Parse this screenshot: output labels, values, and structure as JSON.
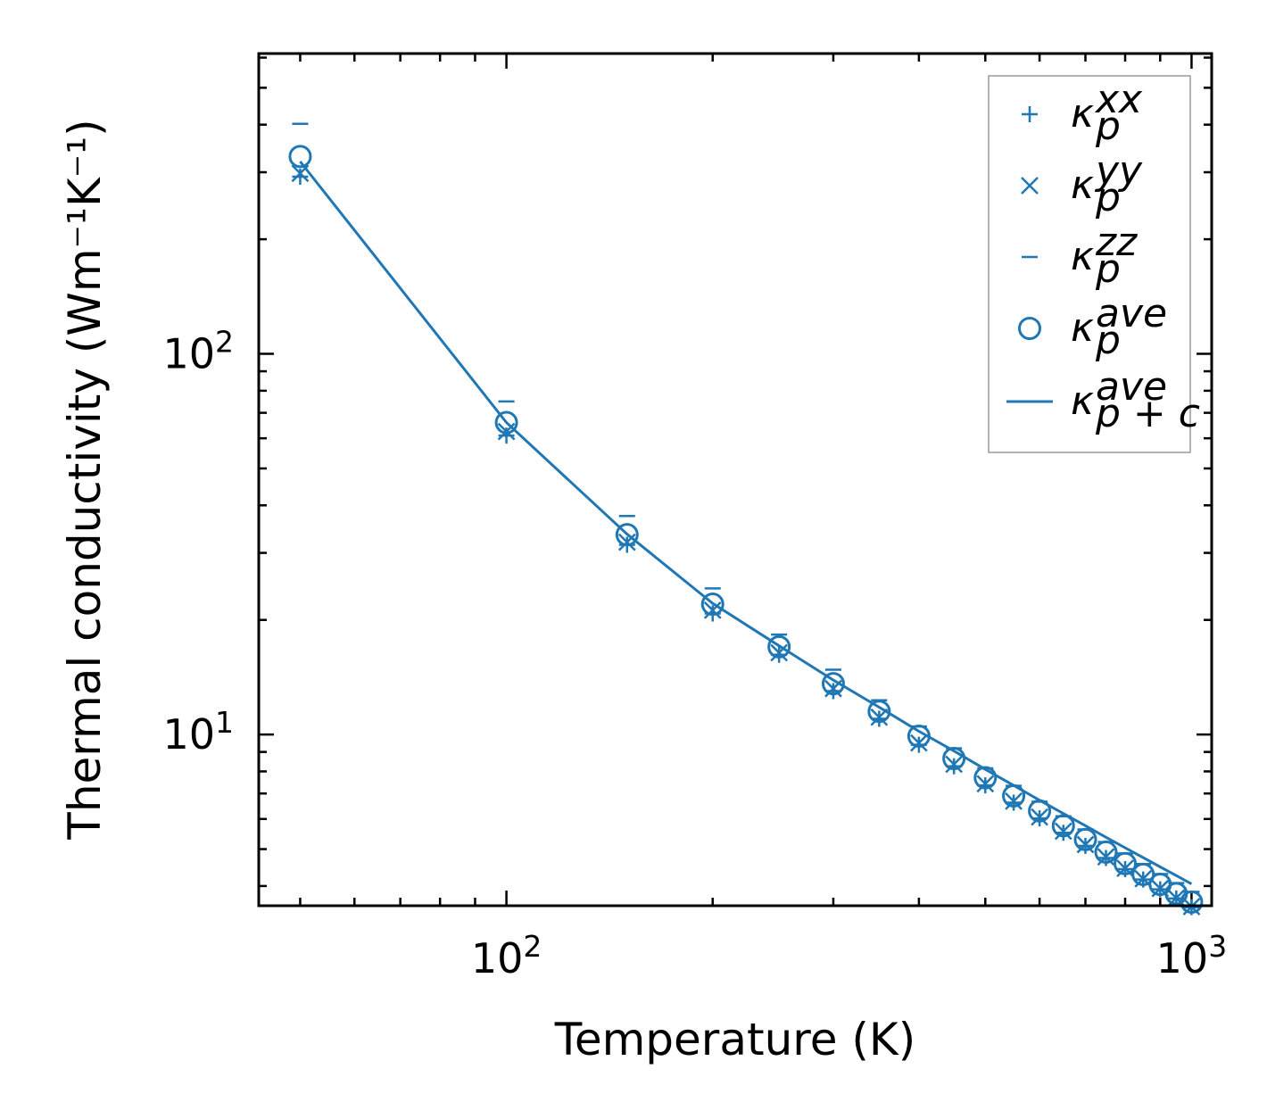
{
  "chart_data": {
    "type": "scatter",
    "xscale": "log",
    "yscale": "log",
    "xlabel": "Temperature (K)",
    "ylabel": "Thermal conductivity (Wm⁻¹K⁻¹)",
    "xlim": [
      43.5,
      1070
    ],
    "ylim": [
      3.55,
      615
    ],
    "x_ticks": [
      {
        "value": 100,
        "base": "10",
        "exp": "2"
      },
      {
        "value": 1000,
        "base": "10",
        "exp": "3"
      }
    ],
    "y_ticks": [
      {
        "value": 10,
        "base": "10",
        "exp": "1"
      },
      {
        "value": 100,
        "base": "10",
        "exp": "2"
      }
    ],
    "color": "#1f77b4",
    "x": [
      50,
      100,
      150,
      200,
      250,
      300,
      350,
      400,
      450,
      500,
      550,
      600,
      650,
      700,
      750,
      800,
      850,
      900,
      950,
      1000
    ],
    "series": [
      {
        "name": "κ_p^xx",
        "marker": "plus",
        "values": [
          292,
          61,
          31.5,
          20.8,
          16.2,
          13.0,
          11.0,
          9.4,
          8.25,
          7.35,
          6.62,
          6.02,
          5.52,
          5.1,
          4.74,
          4.43,
          4.16,
          3.92,
          3.71,
          3.52
        ]
      },
      {
        "name": "κ_p^yy",
        "marker": "x",
        "values": [
          298,
          62.5,
          32,
          21.2,
          16.4,
          13.2,
          11.1,
          9.5,
          8.35,
          7.42,
          6.68,
          6.07,
          5.57,
          5.14,
          4.77,
          4.45,
          4.18,
          3.94,
          3.72,
          3.53
        ]
      },
      {
        "name": "κ_p^zz",
        "marker": "hline",
        "values": [
          402,
          75,
          37.5,
          24.2,
          18.3,
          14.8,
          12.3,
          10.5,
          9.2,
          8.15,
          7.33,
          6.66,
          6.1,
          5.63,
          5.22,
          4.87,
          4.57,
          4.3,
          4.07,
          3.86
        ]
      },
      {
        "name": "κ_p^ave",
        "marker": "circle",
        "values": [
          330,
          66,
          33.5,
          22,
          17,
          13.6,
          11.5,
          9.9,
          8.65,
          7.7,
          6.9,
          6.3,
          5.76,
          5.3,
          4.91,
          4.58,
          4.29,
          4.04,
          3.82,
          3.63
        ]
      },
      {
        "name": "κ_{p+c}^ave",
        "marker": "line",
        "values": [
          320,
          66,
          33.6,
          22.1,
          17.1,
          13.9,
          11.8,
          10.2,
          9.05,
          8.1,
          7.35,
          6.72,
          6.2,
          5.76,
          5.37,
          5.04,
          4.75,
          4.49,
          4.26,
          4.05
        ]
      }
    ],
    "legend": {
      "position": "top-right",
      "entries": [
        {
          "symbol": "κ",
          "sub": "p",
          "sup": "xx",
          "marker": "plus"
        },
        {
          "symbol": "κ",
          "sub": "p",
          "sup": "yy",
          "marker": "x"
        },
        {
          "symbol": "κ",
          "sub": "p",
          "sup": "zz",
          "marker": "hline"
        },
        {
          "symbol": "κ",
          "sub": "p",
          "sup": "ave",
          "marker": "circle"
        },
        {
          "symbol": "κ",
          "sub": "p + c",
          "sup": "ave",
          "marker": "line"
        }
      ]
    }
  }
}
